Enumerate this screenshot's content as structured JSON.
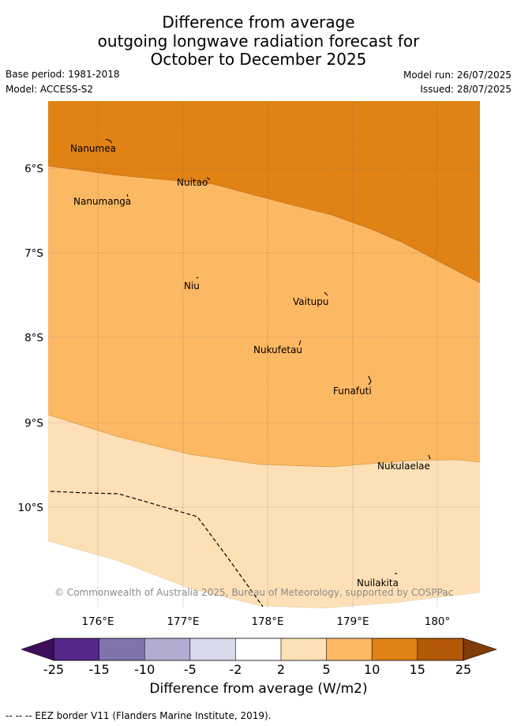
{
  "title_lines": [
    "Difference from average",
    "outgoing longwave radiation forecast for",
    "October to December 2025"
  ],
  "meta": {
    "base_period": "Base period: 1981-2018",
    "model": "Model: ACCESS-S2",
    "model_run": "Model run: 26/07/2025",
    "issued": "Issued: 28/07/2025"
  },
  "map": {
    "lat_labels": [
      "6°S",
      "7°S",
      "8°S",
      "9°S",
      "10°S"
    ],
    "lon_labels": [
      "176°E",
      "177°E",
      "178°E",
      "179°E",
      "180°"
    ],
    "places": [
      "Nanumea",
      "Nuitao",
      "Nanumanga",
      "Niu",
      "Vaitupu",
      "Nukufetau",
      "Funafuti",
      "Nukulaelae",
      "Nuilakita"
    ],
    "copyright": "© Commonwealth of Australia 2025, Bureau of Meteorology, supported by COSPPac",
    "zone_colors": {
      "10 to 15": "#e08214",
      "5 to 10": "#fdb863",
      "2 to 5": "#fee0b6"
    }
  },
  "colorbar": {
    "ticks": [
      "-25",
      "-15",
      "-10",
      "-5",
      "-2",
      "2",
      "5",
      "10",
      "15",
      "25"
    ],
    "colors": [
      "#3f0e59",
      "#542788",
      "#8073ac",
      "#b2abd2",
      "#d8daeb",
      "#ffffff",
      "#fee0b6",
      "#fdb863",
      "#e08214",
      "#b35806",
      "#7f3b08"
    ],
    "title": "Difference from average (W/m2)"
  },
  "footer": "-- -- -- EEZ border V11 (Flanders Marine Institute, 2019)."
}
